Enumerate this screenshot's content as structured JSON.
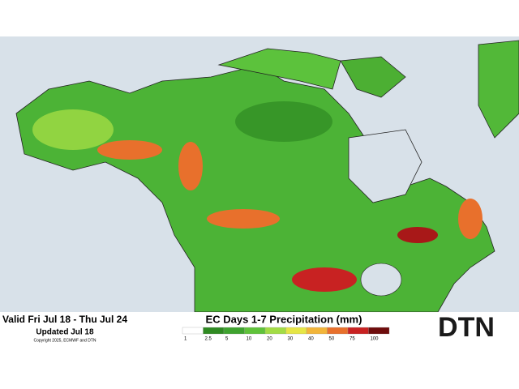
{
  "header": {
    "valid": "Valid Fri Jul 18 - Thu Jul 24",
    "updated": "Updated Jul 18",
    "copyright": "Copyright 2025, ECMWF and DTN"
  },
  "legend": {
    "title": "EC Days 1-7 Precipitation (mm)",
    "items": [
      {
        "label": "1",
        "color": "#ffffff"
      },
      {
        "label": "2.5",
        "color": "#2f8a22"
      },
      {
        "label": "5",
        "color": "#3fa32f"
      },
      {
        "label": "10",
        "color": "#5fc23a"
      },
      {
        "label": "20",
        "color": "#a3dc45"
      },
      {
        "label": "30",
        "color": "#e6e646"
      },
      {
        "label": "40",
        "color": "#f2b53a"
      },
      {
        "label": "50",
        "color": "#e8702c"
      },
      {
        "label": "75",
        "color": "#c82222"
      },
      {
        "label": "100",
        "color": "#6e0c0c"
      }
    ]
  },
  "logo": "DTN"
}
